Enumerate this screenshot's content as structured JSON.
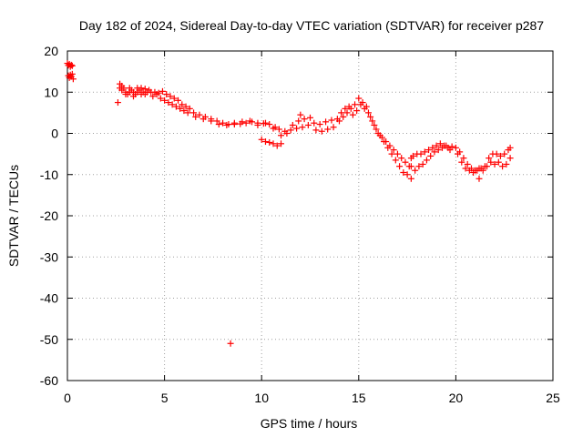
{
  "chart_data": {
    "type": "scatter",
    "title": "Day 182 of 2024, Sidereal Day-to-day VTEC variation (SDTVAR) for receiver p287",
    "xlabel": "GPS time / hours",
    "ylabel": "SDTVAR / TECUs",
    "xlim": [
      0,
      25
    ],
    "ylim": [
      -60,
      20
    ],
    "xticks": [
      0,
      5,
      10,
      15,
      20,
      25
    ],
    "yticks": [
      -60,
      -50,
      -40,
      -30,
      -20,
      -10,
      0,
      10,
      20
    ],
    "grid": true,
    "marker": "plus",
    "color": "#ff0000",
    "series": [
      {
        "name": "SDTVAR",
        "x": [
          0.0,
          0.05,
          0.1,
          0.15,
          0.2,
          0.25,
          0.05,
          0.1,
          0.15,
          0.2,
          0.25,
          0.3,
          2.6,
          2.7,
          2.8,
          2.9,
          3.0,
          3.1,
          3.2,
          3.3,
          3.4,
          3.5,
          3.6,
          3.7,
          3.8,
          3.9,
          4.0,
          4.1,
          4.2,
          2.8,
          3.0,
          3.2,
          3.4,
          3.6,
          3.8,
          4.0,
          2.7,
          4.3,
          4.5,
          4.7,
          4.9,
          5.1,
          5.3,
          5.5,
          5.7,
          5.9,
          6.1,
          6.3,
          4.4,
          4.6,
          4.8,
          5.0,
          5.2,
          5.4,
          5.6,
          5.8,
          6.0,
          6.2,
          6.5,
          6.8,
          7.1,
          7.4,
          7.7,
          8.0,
          8.3,
          8.6,
          8.9,
          9.2,
          9.5,
          9.8,
          10.1,
          10.4,
          10.7,
          6.6,
          7.0,
          7.4,
          7.8,
          8.2,
          8.6,
          9.0,
          9.4,
          9.8,
          10.2,
          10.6,
          10.0,
          10.2,
          10.4,
          10.6,
          10.8,
          11.0,
          10.9,
          11.2,
          11.5,
          11.8,
          12.1,
          12.4,
          12.7,
          13.0,
          13.3,
          13.6,
          13.9,
          11.0,
          11.3,
          11.6,
          11.9,
          12.2,
          12.5,
          12.8,
          13.1,
          13.4,
          13.7,
          12.0,
          14.0,
          14.2,
          14.4,
          14.6,
          14.8,
          15.0,
          15.2,
          15.4,
          14.1,
          14.3,
          14.5,
          14.7,
          14.9,
          15.1,
          15.3,
          15.5,
          15.6,
          15.8,
          16.0,
          16.2,
          16.4,
          16.6,
          16.8,
          17.0,
          17.2,
          17.4,
          17.6,
          15.7,
          15.9,
          16.1,
          16.3,
          16.5,
          16.7,
          16.9,
          17.1,
          17.3,
          17.5,
          17.7,
          17.7,
          17.7,
          17.8,
          18.0,
          18.2,
          18.4,
          18.6,
          18.8,
          19.0,
          19.2,
          19.4,
          19.6,
          19.8,
          20.0,
          17.9,
          18.1,
          18.3,
          18.5,
          18.7,
          18.9,
          19.1,
          19.3,
          19.5,
          19.7,
          20.1,
          20.3,
          20.5,
          20.7,
          20.9,
          21.1,
          21.3,
          21.5,
          21.7,
          21.9,
          22.1,
          22.3,
          22.5,
          22.7,
          22.8,
          22.8,
          20.2,
          20.4,
          20.6,
          20.8,
          21.0,
          21.2,
          21.4,
          21.6,
          21.8,
          22.0,
          22.2,
          22.4,
          22.6,
          21.2,
          8.4
        ],
        "y": [
          17,
          16.5,
          16.8,
          16.2,
          16.6,
          16.4,
          14,
          13.5,
          14.2,
          13.8,
          14.4,
          13.2,
          7.5,
          11,
          11.5,
          11,
          10,
          9.5,
          10,
          10.5,
          10,
          9.5,
          10,
          10.5,
          11,
          10,
          9.5,
          10,
          10.5,
          10.5,
          9.5,
          11,
          9,
          11,
          9.5,
          10.8,
          12,
          10,
          10,
          9.8,
          10.2,
          9.5,
          9,
          8.5,
          8,
          7,
          6.5,
          6,
          9,
          9.5,
          8.5,
          8,
          7.5,
          7,
          6.5,
          6,
          5.5,
          5,
          5,
          4.5,
          4,
          3.5,
          3,
          2.5,
          2.2,
          2.5,
          2.3,
          2.5,
          2.8,
          2.5,
          2.4,
          2.2,
          1.5,
          4,
          3.5,
          3,
          2.2,
          2,
          2.2,
          2.8,
          3,
          2,
          2.5,
          1.2,
          -1.5,
          -2,
          -2.2,
          -2.5,
          -3,
          -2.5,
          1,
          0.5,
          0.8,
          1.2,
          1.5,
          2,
          2.5,
          2.2,
          2.8,
          3.2,
          3.5,
          -0.5,
          0,
          2,
          3,
          3.5,
          3.8,
          0.8,
          0.5,
          1,
          1.5,
          4.5,
          3,
          4,
          5,
          6,
          7,
          8.5,
          7.5,
          6.5,
          5,
          6,
          6.5,
          4.5,
          5.5,
          7,
          6,
          5,
          4,
          2,
          0,
          -1,
          -2,
          -3,
          -4,
          -5,
          -6,
          -7,
          -8,
          3,
          1,
          -0.5,
          -2,
          -3.5,
          -5,
          -6.5,
          -8,
          -9.5,
          -10,
          -11,
          -8,
          -6,
          -5.5,
          -5,
          -5,
          -4.5,
          -4,
          -3.5,
          -3,
          -2.5,
          -3,
          -3.5,
          -3.2,
          -3.5,
          -9,
          -8,
          -7.5,
          -6.5,
          -5.5,
          -4.5,
          -4,
          -3.5,
          -3,
          -4,
          -5,
          -7,
          -8.5,
          -9,
          -9.5,
          -9,
          -8.5,
          -8,
          -6,
          -5,
          -5,
          -5.5,
          -5,
          -4,
          -3.5,
          -6,
          -4.5,
          -6,
          -7.5,
          -8.5,
          -9,
          -8.5,
          -9,
          -8,
          -7,
          -7.5,
          -7,
          -8,
          -7.5,
          -11,
          -51
        ]
      }
    ]
  }
}
